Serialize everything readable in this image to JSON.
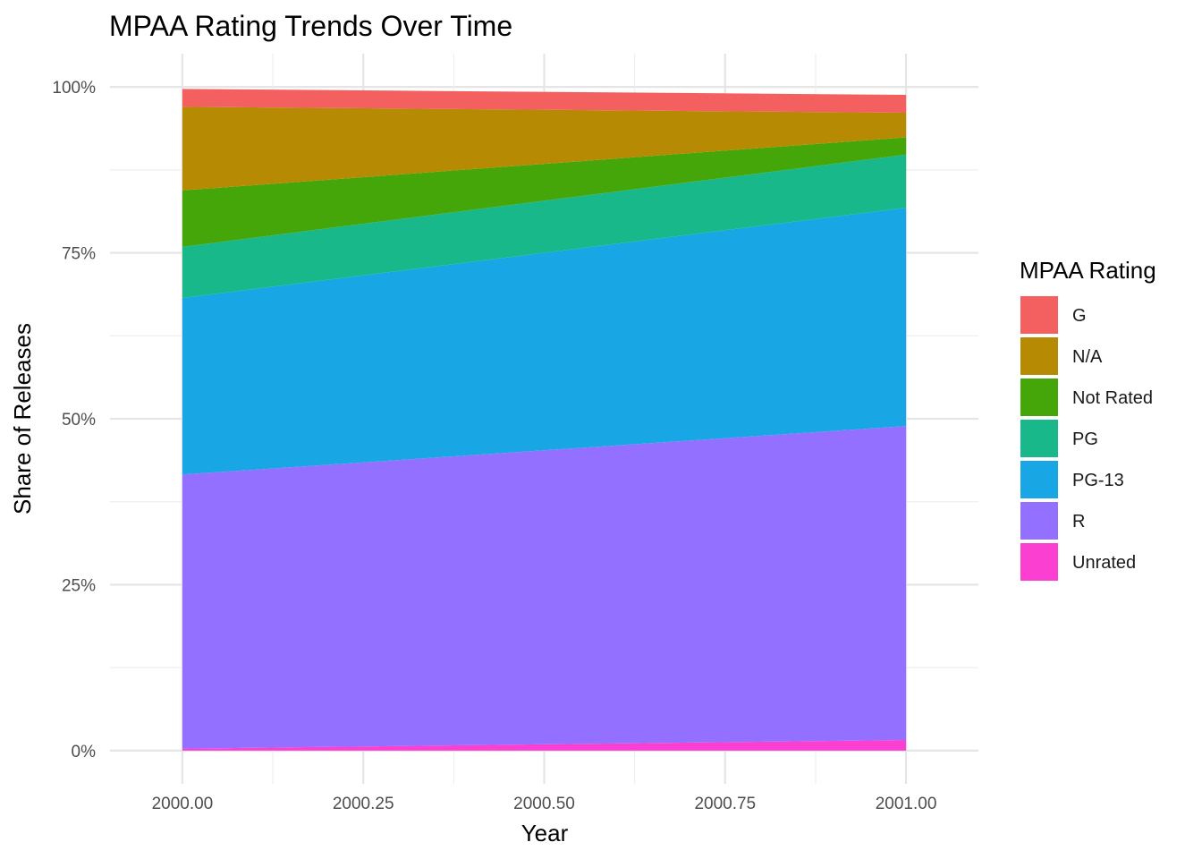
{
  "chart_data": {
    "type": "area",
    "stacked": true,
    "title": "MPAA Rating Trends Over Time",
    "xlabel": "Year",
    "ylabel": "Share of Releases",
    "x": [
      2000.0,
      2001.0
    ],
    "xlim": [
      1999.9,
      2001.1
    ],
    "ylim": [
      0,
      1
    ],
    "x_ticks": [
      "2000.00",
      "2000.25",
      "2000.50",
      "2000.75",
      "2001.00"
    ],
    "x_tick_values": [
      2000.0,
      2000.25,
      2000.5,
      2000.75,
      2001.0
    ],
    "y_ticks": [
      "0%",
      "25%",
      "50%",
      "75%",
      "100%"
    ],
    "y_tick_values": [
      0,
      0.25,
      0.5,
      0.75,
      1.0
    ],
    "grid": true,
    "legend": {
      "title": "MPAA Rating",
      "position": "right"
    },
    "series": [
      {
        "name": "Unrated",
        "color": "#FB3FD0",
        "values": [
          0.003,
          0.016
        ]
      },
      {
        "name": "R",
        "color": "#9370FF",
        "values": [
          0.413,
          0.473
        ]
      },
      {
        "name": "PG-13",
        "color": "#18A6E5",
        "values": [
          0.266,
          0.329
        ]
      },
      {
        "name": "PG",
        "color": "#19B88A",
        "values": [
          0.077,
          0.08
        ]
      },
      {
        "name": "Not Rated",
        "color": "#45A609",
        "values": [
          0.085,
          0.026
        ]
      },
      {
        "name": "N/A",
        "color": "#B78A04",
        "values": [
          0.126,
          0.037
        ]
      },
      {
        "name": "G",
        "color": "#F3605F",
        "values": [
          0.027,
          0.027
        ]
      }
    ],
    "legend_order": [
      "G",
      "N/A",
      "Not Rated",
      "PG",
      "PG-13",
      "R",
      "Unrated"
    ]
  }
}
